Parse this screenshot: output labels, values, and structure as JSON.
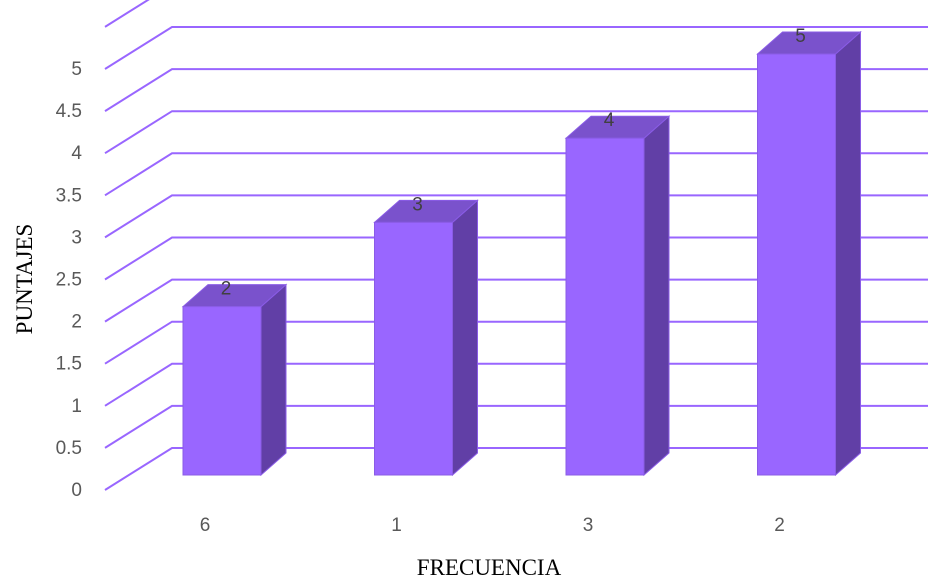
{
  "chart_data": {
    "type": "bar",
    "style": "3d-column",
    "categories": [
      "6",
      "1",
      "3",
      "2"
    ],
    "values": [
      2,
      3,
      4,
      5
    ],
    "data_labels": [
      "2",
      "3",
      "4",
      "5"
    ],
    "xlabel": "FRECUENCIA",
    "ylabel": "PUNTAJES",
    "ylim": [
      0,
      5
    ],
    "y_ticks": [
      "0",
      "0.5",
      "1",
      "1.5",
      "2",
      "2.5",
      "3",
      "3.5",
      "4",
      "4.5",
      "5"
    ],
    "grid": true,
    "legend": "none",
    "colors": {
      "bar_front": "#9966FF",
      "bar_side": "#613FA6",
      "bar_top": "#7A52CC",
      "bar_edge": "#8A5CE6",
      "gridline": "#9966FF"
    }
  }
}
